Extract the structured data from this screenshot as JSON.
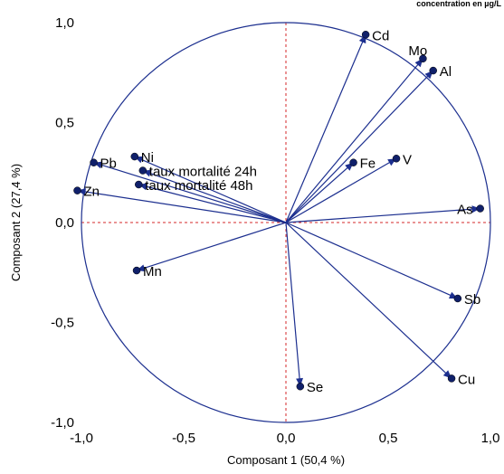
{
  "header_note": "concentration en µg/L",
  "chart_data": {
    "type": "scatter",
    "subtype": "pca-correlation-circle",
    "title": "",
    "xlabel": "Composant 1  (50,4 %)",
    "ylabel": "Composant 2  (27,4 %)",
    "xlim": [
      -1.0,
      1.0
    ],
    "ylim": [
      -1.0,
      1.0
    ],
    "x_ticks": [
      -1.0,
      -0.5,
      0.0,
      0.5,
      1.0
    ],
    "y_ticks": [
      -1.0,
      -0.5,
      0.0,
      0.5,
      1.0
    ],
    "x_tick_labels": [
      "-1,0",
      "-0,5",
      "0,0",
      "0,5",
      "1,0"
    ],
    "y_tick_labels": [
      "-1,0",
      "-0,5",
      "0,0",
      "0,5",
      "1,0"
    ],
    "unit_circle": true,
    "reference_lines": [
      0,
      0
    ],
    "colors": {
      "vector": "#1c2f8f",
      "point": "#10206a",
      "circle": "#1c2f8f",
      "refline": "#d62728"
    },
    "variables": [
      {
        "name": "Cd",
        "x": 0.39,
        "y": 0.94,
        "label_side": "right"
      },
      {
        "name": "Mo",
        "x": 0.67,
        "y": 0.82,
        "label_side": "above-left"
      },
      {
        "name": "Al",
        "x": 0.72,
        "y": 0.76,
        "label_side": "right"
      },
      {
        "name": "Pb",
        "x": -0.94,
        "y": 0.3,
        "label_side": "right"
      },
      {
        "name": "Ni",
        "x": -0.74,
        "y": 0.33,
        "label_side": "right"
      },
      {
        "name": "taux mortalité 24h",
        "x": -0.7,
        "y": 0.26,
        "label_side": "right"
      },
      {
        "name": "taux mortalité 48h",
        "x": -0.72,
        "y": 0.19,
        "label_side": "right"
      },
      {
        "name": "Zn",
        "x": -1.02,
        "y": 0.16,
        "label_side": "right"
      },
      {
        "name": "Fe",
        "x": 0.33,
        "y": 0.3,
        "label_side": "right"
      },
      {
        "name": "V",
        "x": 0.54,
        "y": 0.32,
        "label_side": "right"
      },
      {
        "name": "As",
        "x": 0.95,
        "y": 0.07,
        "label_side": "left"
      },
      {
        "name": "Mn",
        "x": -0.73,
        "y": -0.24,
        "label_side": "right"
      },
      {
        "name": "Sb",
        "x": 0.84,
        "y": -0.38,
        "label_side": "right"
      },
      {
        "name": "Se",
        "x": 0.07,
        "y": -0.82,
        "label_side": "right"
      },
      {
        "name": "Cu",
        "x": 0.81,
        "y": -0.78,
        "label_side": "right"
      }
    ]
  }
}
